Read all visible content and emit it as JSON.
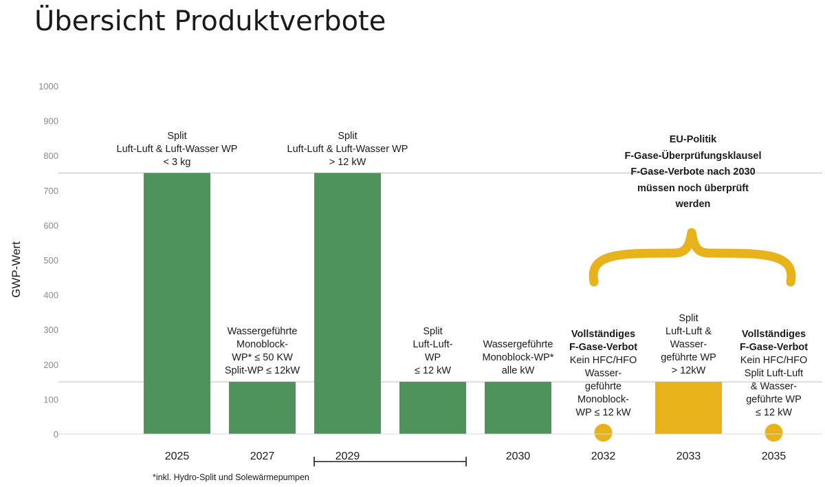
{
  "title": "Übersicht Produktverbote",
  "footnote": "*inkl. Hydro-Split und Solewärmepumpen",
  "eu_note": [
    "EU-Politik",
    "F-Gase-Überprüfungsklausel",
    "F-Gase-Verbote nach 2030",
    "müssen noch überprüft",
    "werden"
  ],
  "colors": {
    "green": "#4e925c",
    "yellow": "#e8b31a",
    "grid": "#d9d9d9"
  },
  "icons": {
    "brace": "curly-brace-icon"
  },
  "chart_data": {
    "type": "bar",
    "title": "Übersicht Produktverbote",
    "ylabel": "GWP-Wert",
    "xlabel": "",
    "ylim": [
      0,
      1000
    ],
    "yticks": [
      0,
      100,
      200,
      300,
      400,
      500,
      600,
      700,
      800,
      900,
      1000
    ],
    "reference_lines": [
      150,
      750
    ],
    "bars": [
      {
        "category": "2025",
        "value": 750,
        "color": "green",
        "marker": "bar",
        "label": [
          "Split",
          "Luft-Luft & Luft-Wasser WP",
          "< 3 kg"
        ]
      },
      {
        "category": "2027",
        "value": 150,
        "color": "green",
        "marker": "bar",
        "label": [
          "Wassergeführte",
          "Monoblock-",
          "WP* ≤ 50 KW",
          "Split-WP ≤ 12kW"
        ]
      },
      {
        "category": "2029",
        "value": 750,
        "color": "green",
        "marker": "bar",
        "label": [
          "Split",
          "Luft-Luft & Luft-Wasser WP",
          "> 12 kW"
        ]
      },
      {
        "category": "",
        "value": 150,
        "color": "green",
        "marker": "bar",
        "label": [
          "Split",
          "Luft-Luft-",
          "WP",
          "≤ 12 kW"
        ]
      },
      {
        "category": "2030",
        "value": 150,
        "color": "green",
        "marker": "bar",
        "label": [
          "Wassergeführte",
          "Monoblock-WP*",
          "alle kW"
        ]
      },
      {
        "category": "2032",
        "value": 0,
        "color": "yellow",
        "marker": "dot",
        "label": [
          "Vollständiges",
          "F-Gase-Verbot",
          "Kein HFC/HFO",
          "Wasser-",
          "geführte",
          "Monoblock-",
          "WP ≤ 12 kW"
        ],
        "bold_lines": 2
      },
      {
        "category": "2033",
        "value": 150,
        "color": "yellow",
        "marker": "bar",
        "label": [
          "Split",
          "Luft-Luft &",
          "Wasser-",
          "geführte WP",
          "> 12kW"
        ]
      },
      {
        "category": "2035",
        "value": 0,
        "color": "yellow",
        "marker": "dot",
        "label": [
          "Vollständiges",
          "F-Gase-Verbot",
          "Kein HFC/HFO",
          "Split Luft-Luft",
          "& Wasser-",
          "geführte WP",
          "≤ 12 kW"
        ],
        "bold_lines": 2
      }
    ],
    "grid": false,
    "legend": "none"
  }
}
